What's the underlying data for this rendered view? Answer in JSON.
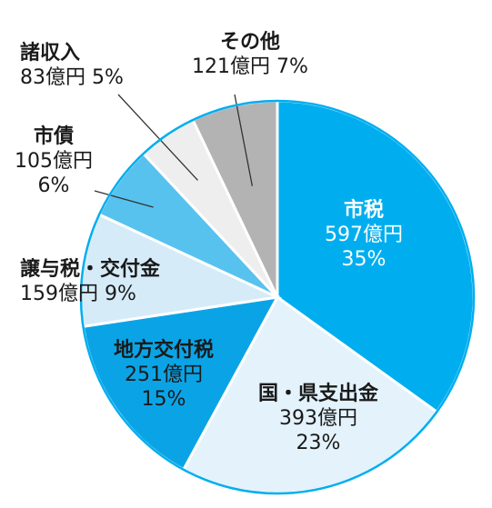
{
  "chart_data": {
    "type": "pie",
    "unit": "億円",
    "slices": [
      {
        "name": "市税",
        "value": 597,
        "value_label": "597億円",
        "percent": "35%",
        "color": "#00aeef"
      },
      {
        "name": "国・県支出金",
        "value": 393,
        "value_label": "393億円",
        "percent": "23%",
        "color": "#e3f2fb"
      },
      {
        "name": "地方交付税",
        "value": 251,
        "value_label": "251億円",
        "percent": "15%",
        "color": "#0aa4e6"
      },
      {
        "name": "譲与税・交付金",
        "value": 159,
        "value_label": "159億円",
        "percent": "9%",
        "color": "#d6ebf8"
      },
      {
        "name": "市債",
        "value": 105,
        "value_label": "105億円",
        "percent": "6%",
        "color": "#58c2ef"
      },
      {
        "name": "諸収入",
        "value": 83,
        "value_label": "83億円",
        "percent": "5%",
        "color": "#eeeeee"
      },
      {
        "name": "その他",
        "value": 121,
        "value_label": "121億円",
        "percent": "7%",
        "color": "#b3b3b3"
      }
    ],
    "border_color": "#00aeef"
  }
}
